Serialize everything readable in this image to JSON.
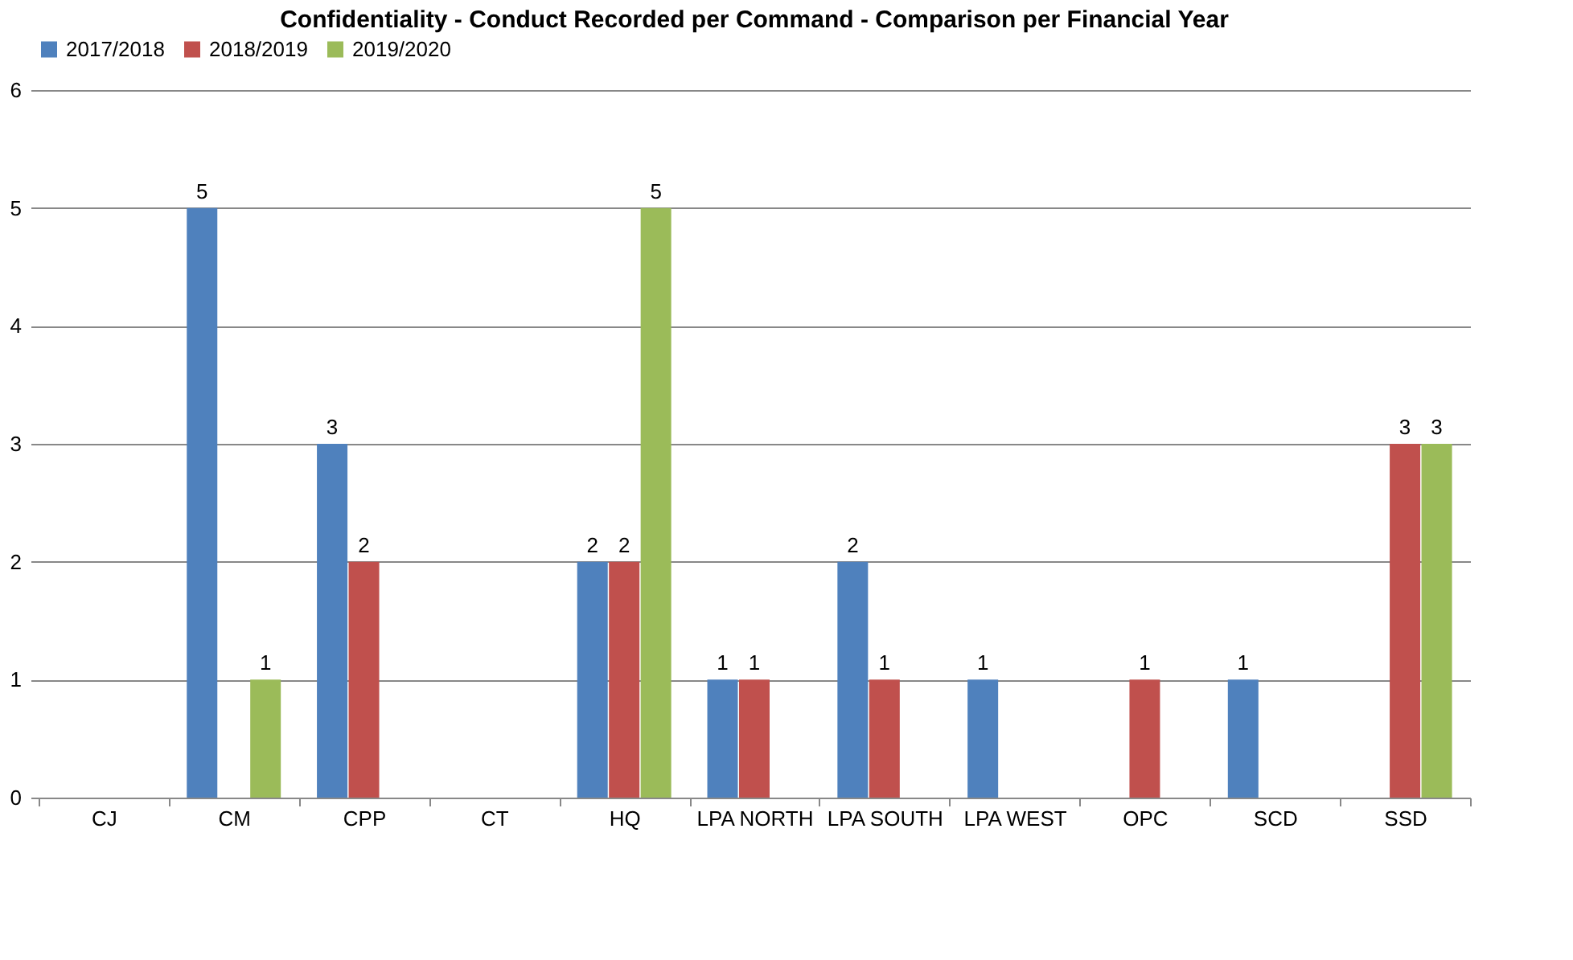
{
  "chart_data": {
    "type": "bar",
    "title": "Confidentiality - Conduct Recorded per Command - Comparison per Financial Year",
    "categories": [
      "CJ",
      "CM",
      "CPP",
      "CT",
      "HQ",
      "LPA NORTH",
      "LPA SOUTH",
      "LPA WEST",
      "OPC",
      "SCD",
      "SSD"
    ],
    "series": [
      {
        "name": "2017/2018",
        "color": "#4f81bd",
        "values": [
          0,
          5,
          3,
          0,
          2,
          1,
          2,
          1,
          0,
          1,
          0
        ],
        "value_labels": [
          null,
          "5",
          "3",
          null,
          "2",
          "1",
          "2",
          "1",
          null,
          "1",
          null
        ]
      },
      {
        "name": "2018/2019",
        "color": "#c0504d",
        "values": [
          0,
          0,
          2,
          0,
          2,
          1,
          1,
          0,
          1,
          0,
          3
        ],
        "value_labels": [
          null,
          null,
          "2",
          null,
          "2",
          "1",
          "1",
          null,
          "1",
          null,
          "3"
        ]
      },
      {
        "name": "2019/2020",
        "color": "#9bbb59",
        "values": [
          0,
          1,
          0,
          0,
          5,
          0,
          0,
          0,
          0,
          0,
          3
        ],
        "value_labels": [
          null,
          "1",
          null,
          null,
          "5",
          null,
          null,
          null,
          null,
          null,
          "3"
        ]
      }
    ],
    "ylim": [
      0,
      6
    ],
    "yticks": [
      0,
      1,
      2,
      3,
      4,
      5,
      6
    ],
    "grid": "y",
    "legend": "top"
  }
}
